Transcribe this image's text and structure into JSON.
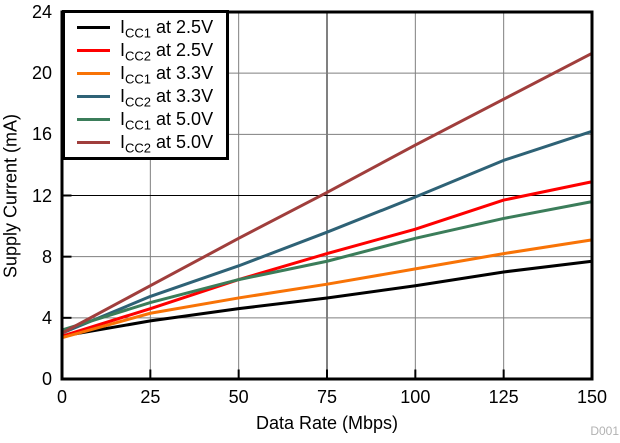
{
  "watermark": "D001",
  "frame_color": "#000000",
  "chart_data": {
    "type": "line",
    "title": "",
    "xlabel": "Data Rate (Mbps)",
    "ylabel": "Supply Current (mA)",
    "xlim": [
      0,
      150
    ],
    "ylim": [
      0,
      24
    ],
    "x_ticks": [
      0,
      25,
      50,
      75,
      100,
      125,
      150
    ],
    "y_ticks": [
      0,
      4,
      8,
      12,
      16,
      20,
      24
    ],
    "grid": true,
    "grid_color": "#7f7f7f",
    "emphasized_grid": {
      "x": 75,
      "y": 12,
      "color": "#000000"
    },
    "legend_position": "top-left",
    "x": [
      0,
      25,
      50,
      75,
      100,
      125,
      150
    ],
    "series": [
      {
        "name": "ICC1 at 2.5V",
        "label_prefix": "I",
        "label_sub": "CC1",
        "label_rest": " at 2.5V",
        "color": "#000000",
        "values": [
          2.8,
          3.8,
          4.6,
          5.3,
          6.1,
          7.0,
          7.7
        ]
      },
      {
        "name": "ICC2 at 2.5V",
        "label_prefix": "I",
        "label_sub": "CC2",
        "label_rest": " at 2.5V",
        "color": "#fe0000",
        "values": [
          2.8,
          4.6,
          6.5,
          8.2,
          9.8,
          11.7,
          12.9
        ]
      },
      {
        "name": "ICC1 at 3.3V",
        "label_prefix": "I",
        "label_sub": "CC1",
        "label_rest": " at 3.3V",
        "color": "#f87306",
        "values": [
          2.7,
          4.3,
          5.3,
          6.2,
          7.2,
          8.2,
          9.1
        ]
      },
      {
        "name": "ICC2 at 3.3V",
        "label_prefix": "I",
        "label_sub": "CC2",
        "label_rest": " at 3.3V",
        "color": "#2e6276",
        "values": [
          3.0,
          5.4,
          7.4,
          9.6,
          11.9,
          14.3,
          16.2
        ]
      },
      {
        "name": "ICC1 at 5.0V",
        "label_prefix": "I",
        "label_sub": "CC1",
        "label_rest": " at 5.0V",
        "color": "#3b7d5a",
        "values": [
          3.2,
          5.0,
          6.5,
          7.7,
          9.2,
          10.5,
          11.6
        ]
      },
      {
        "name": "ICC2 at 5.0V",
        "label_prefix": "I",
        "label_sub": "CC2",
        "label_rest": " at 5.0V",
        "color": "#a03e3c",
        "values": [
          3.0,
          6.1,
          9.2,
          12.2,
          15.3,
          18.3,
          21.3
        ]
      }
    ]
  }
}
